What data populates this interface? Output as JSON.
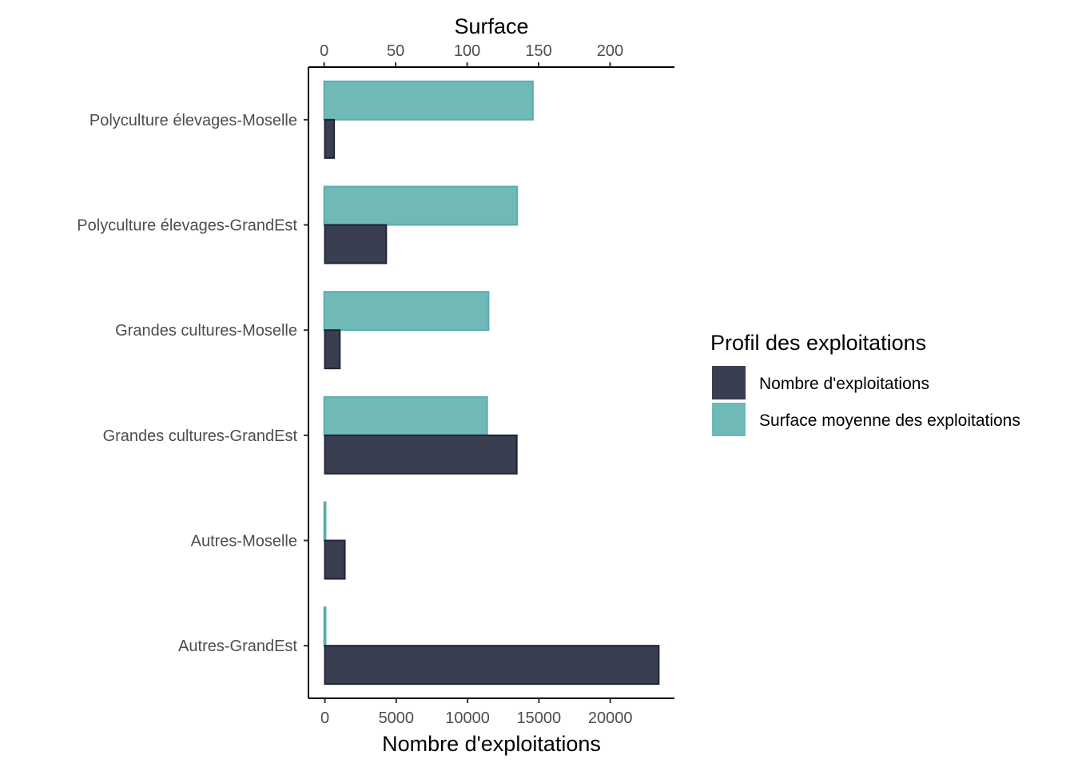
{
  "chart_data": {
    "type": "bar",
    "orientation": "horizontal",
    "categories": [
      "Polyculture élevages-Moselle",
      "Polyculture élevages-GrandEst",
      "Grandes cultures-Moselle",
      "Grandes cultures-GrandEst",
      "Autres-Moselle",
      "Autres-GrandEst"
    ],
    "series": [
      {
        "name": "Nombre d'exploitations",
        "axis": "bottom",
        "color": "#393e51",
        "stroke": "#1f2438",
        "values": [
          650,
          4300,
          1050,
          13450,
          1400,
          23400
        ]
      },
      {
        "name": "Surface moyenne des exploitations",
        "axis": "top",
        "color": "#6fb9b6",
        "stroke": "#5aafac",
        "values": [
          146,
          135,
          115,
          114,
          1,
          1
        ]
      }
    ],
    "x_bottom": {
      "label": "Nombre d'exploitations",
      "range": [
        -1150,
        24500
      ],
      "ticks": [
        0,
        5000,
        10000,
        15000,
        20000
      ]
    },
    "x_top": {
      "label": "Surface",
      "range": [
        -11,
        245
      ],
      "ticks": [
        0,
        50,
        100,
        150,
        200
      ]
    },
    "legend": {
      "title": "Profil des exploitations",
      "position": "right"
    },
    "grid": false
  }
}
